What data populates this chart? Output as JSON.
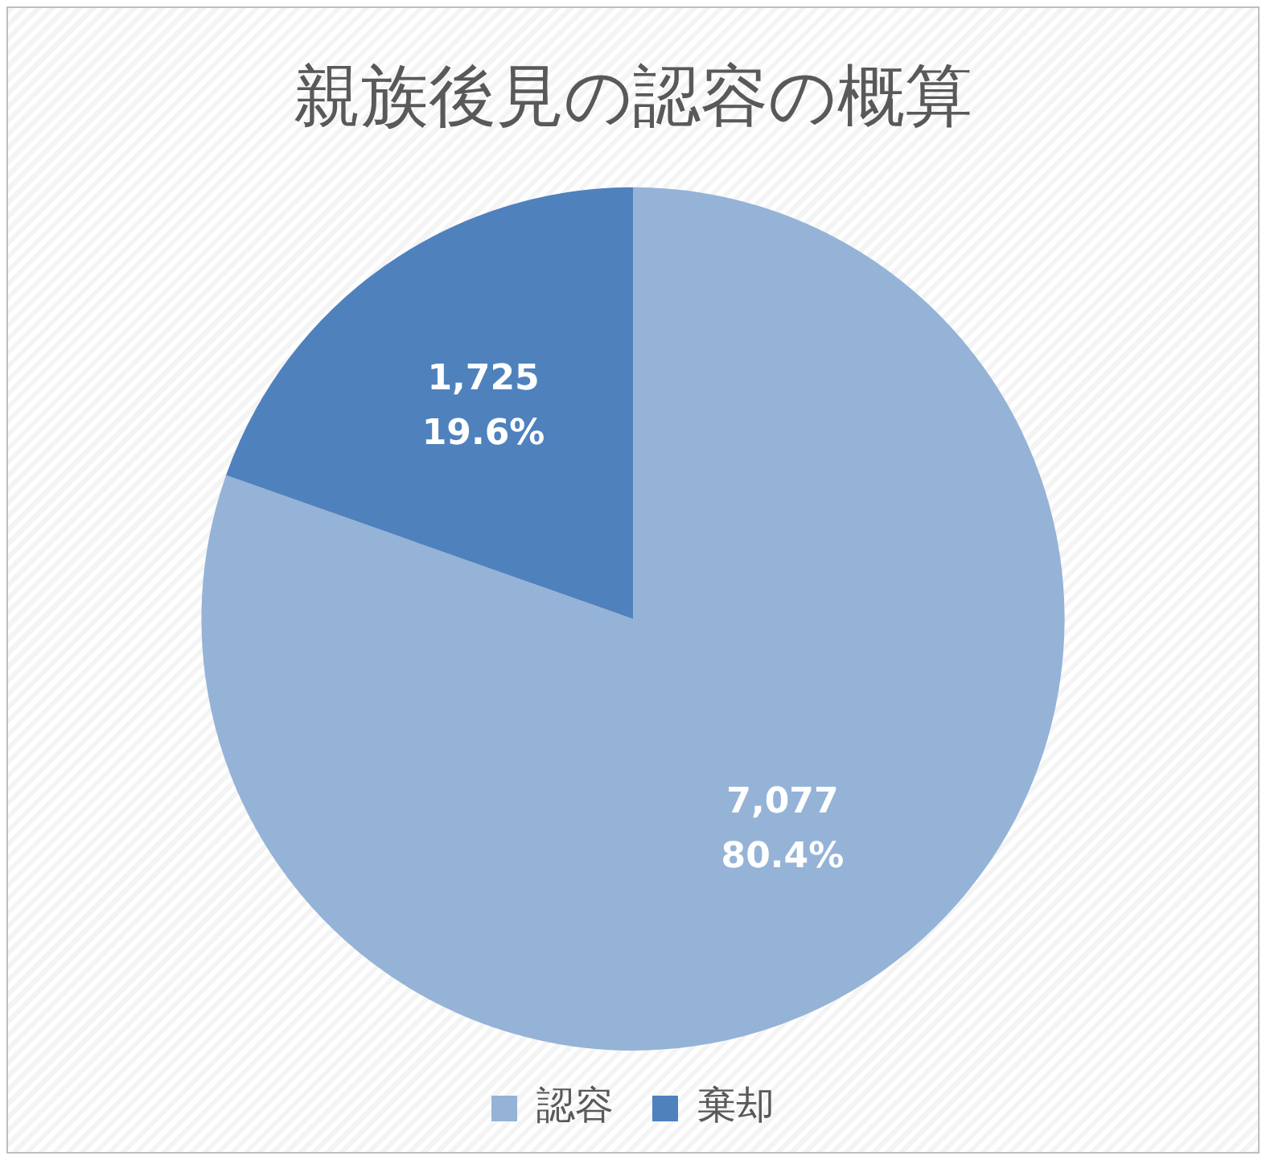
{
  "chart_data": {
    "type": "pie",
    "title": "親族後見の認容の概算",
    "categories": [
      "認容",
      "棄却"
    ],
    "values": [
      7077,
      1725
    ],
    "colors": [
      "#95b3d7",
      "#4f81bd"
    ],
    "value_labels": [
      "7,077\n80.4%",
      "1,725\n19.6%"
    ],
    "legend": "bottom"
  }
}
